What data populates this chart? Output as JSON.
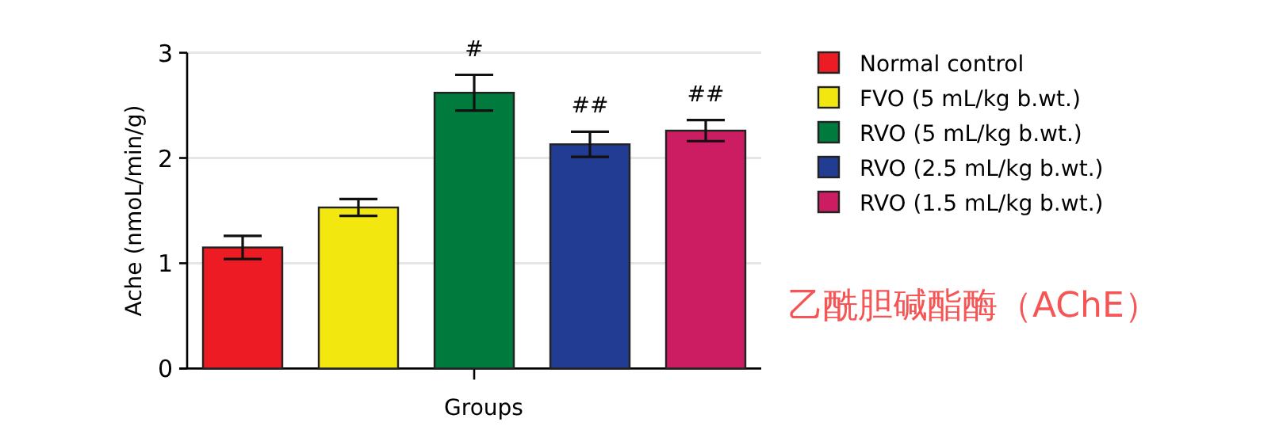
{
  "chart_data": {
    "type": "bar",
    "xlabel": "Groups",
    "ylabel": "Ache (nmoL/min/g)",
    "categories": [
      null
    ],
    "ylim": [
      0,
      3
    ],
    "yticks": [
      0,
      1,
      2,
      3
    ],
    "grid": "y",
    "legend": "right",
    "series": [
      {
        "name": "Normal control",
        "color": "#ed1c24",
        "values": [
          1.15
        ],
        "errors": [
          0.11
        ],
        "value_labels": [
          null
        ]
      },
      {
        "name": "FVO (5 mL/kg b.wt.)",
        "color": "#f2e70e",
        "values": [
          1.53
        ],
        "errors": [
          0.08
        ],
        "value_labels": [
          null
        ]
      },
      {
        "name": "RVO (5 mL/kg b.wt.)",
        "color": "#007a3d",
        "values": [
          2.62
        ],
        "errors": [
          0.17
        ],
        "value_labels": [
          "#"
        ]
      },
      {
        "name": "RVO (2.5 mL/kg b.wt.)",
        "color": "#213c92",
        "values": [
          2.13
        ],
        "errors": [
          0.12
        ],
        "value_labels": [
          "##"
        ]
      },
      {
        "name": "RVO (1.5 mL/kg b.wt.)",
        "color": "#cc1d62",
        "values": [
          2.26
        ],
        "errors": [
          0.1
        ],
        "value_labels": [
          "##"
        ]
      }
    ],
    "annotations": [
      "乙酰胆碱酯酶（AChE）"
    ]
  }
}
